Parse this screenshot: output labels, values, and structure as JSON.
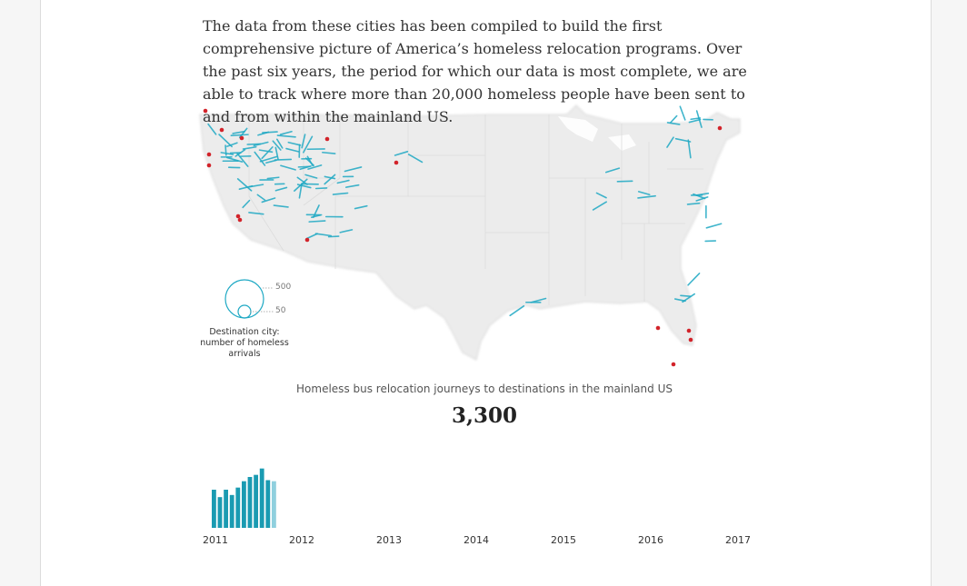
{
  "intro": {
    "text": "The data from these cities has been compiled to build the first comprehensive picture of America’s homeless relocation programs. Over the past six years, the period for which our data is most complete, we are able to track where more than 20,000 homeless people have been sent to and from within the mainland US."
  },
  "legend": {
    "large_value": "500",
    "small_value": "50",
    "caption": "Destination city: number of homeless arrivals"
  },
  "chart": {
    "title": "Homeless bus relocation journeys to destinations in the mainland US",
    "total": "3,300",
    "years": [
      "2011",
      "2012",
      "2013",
      "2014",
      "2015",
      "2016",
      "2017"
    ]
  },
  "colors": {
    "flow": "#1fa9c4",
    "origin": "#d2232a",
    "bar": "#1a9bb2",
    "bar_light": "#8fd0de"
  },
  "chart_data": {
    "type": "bar",
    "title": "Homeless bus relocation journeys to destinations in the mainland US",
    "categories": [
      "2011-1",
      "2011-2",
      "2011-3",
      "2011-4",
      "2011-5",
      "2011-6",
      "2011-7",
      "2011-8",
      "2011-9",
      "2011-10",
      "2011-11"
    ],
    "values": [
      36,
      29,
      36,
      31,
      38,
      44,
      48,
      50,
      56,
      45,
      44
    ],
    "highlighted_last": true,
    "x_tick_labels": [
      "2011",
      "2012",
      "2013",
      "2014",
      "2015",
      "2016",
      "2017"
    ]
  }
}
